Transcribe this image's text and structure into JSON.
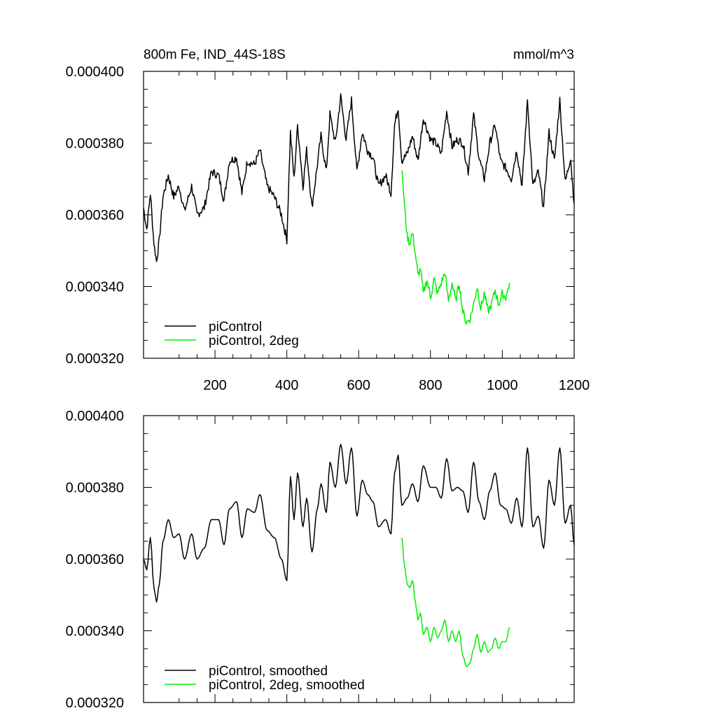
{
  "chart_data": [
    {
      "type": "line",
      "title": "800m Fe, IND_44S-18S",
      "units": "mmol/m^3",
      "xlabel": "",
      "ylabel": "",
      "xlim": [
        1,
        1200
      ],
      "ylim": [
        0.00032,
        0.0004
      ],
      "x_ticks": [
        "200",
        "400",
        "600",
        "800",
        "1000",
        "1200"
      ],
      "y_ticks": [
        "0.000320",
        "0.000340",
        "0.000360",
        "0.000380",
        "0.000400"
      ],
      "legend_position": "bottom-left",
      "series": [
        {
          "name": "piControl",
          "color": "#000000",
          "points": [
            [
              1,
              0.000362
            ],
            [
              10,
              0.000356
            ],
            [
              20,
              0.000366
            ],
            [
              30,
              0.000352
            ],
            [
              37,
              0.000347
            ],
            [
              45,
              0.000353
            ],
            [
              55,
              0.000365
            ],
            [
              70,
              0.000371
            ],
            [
              85,
              0.000365
            ],
            [
              100,
              0.000368
            ],
            [
              115,
              0.000361
            ],
            [
              135,
              0.000368
            ],
            [
              150,
              0.00036
            ],
            [
              170,
              0.000362
            ],
            [
              190,
              0.000372
            ],
            [
              210,
              0.000371
            ],
            [
              225,
              0.000364
            ],
            [
              240,
              0.000375
            ],
            [
              260,
              0.000376
            ],
            [
              275,
              0.000366
            ],
            [
              290,
              0.000375
            ],
            [
              310,
              0.000374
            ],
            [
              325,
              0.000378
            ],
            [
              345,
              0.000368
            ],
            [
              365,
              0.000365
            ],
            [
              385,
              0.00036
            ],
            [
              400,
              0.000353
            ],
            [
              410,
              0.000383
            ],
            [
              420,
              0.00037
            ],
            [
              430,
              0.000385
            ],
            [
              445,
              0.000368
            ],
            [
              455,
              0.000378
            ],
            [
              470,
              0.000362
            ],
            [
              485,
              0.000374
            ],
            [
              495,
              0.000382
            ],
            [
              510,
              0.000372
            ],
            [
              520,
              0.000388
            ],
            [
              535,
              0.00038
            ],
            [
              550,
              0.000393
            ],
            [
              565,
              0.000381
            ],
            [
              580,
              0.000392
            ],
            [
              595,
              0.000372
            ],
            [
              610,
              0.000383
            ],
            [
              625,
              0.000378
            ],
            [
              640,
              0.000376
            ],
            [
              655,
              0.000368
            ],
            [
              675,
              0.000371
            ],
            [
              690,
              0.000366
            ],
            [
              700,
              0.000385
            ],
            [
              710,
              0.00039
            ],
            [
              720,
              0.000375
            ],
            [
              735,
              0.000377
            ],
            [
              750,
              0.000382
            ],
            [
              765,
              0.000375
            ],
            [
              780,
              0.000387
            ],
            [
              800,
              0.000381
            ],
            [
              815,
              0.00038
            ],
            [
              830,
              0.000377
            ],
            [
              845,
              0.000389
            ],
            [
              860,
              0.000379
            ],
            [
              875,
              0.000381
            ],
            [
              890,
              0.00038
            ],
            [
              905,
              0.000372
            ],
            [
              920,
              0.000388
            ],
            [
              935,
              0.000376
            ],
            [
              950,
              0.00037
            ],
            [
              965,
              0.00038
            ],
            [
              980,
              0.000385
            ],
            [
              995,
              0.000375
            ],
            [
              1010,
              0.000373
            ],
            [
              1025,
              0.00037
            ],
            [
              1040,
              0.000378
            ],
            [
              1055,
              0.000368
            ],
            [
              1070,
              0.000392
            ],
            [
              1085,
              0.000368
            ],
            [
              1100,
              0.000372
            ],
            [
              1115,
              0.000362
            ],
            [
              1130,
              0.000383
            ],
            [
              1145,
              0.000375
            ],
            [
              1160,
              0.000392
            ],
            [
              1175,
              0.000369
            ],
            [
              1190,
              0.000376
            ],
            [
              1200,
              0.000363
            ]
          ]
        },
        {
          "name": "piControl, 2deg",
          "color": "#00ee00",
          "points": [
            [
              720,
              0.000373
            ],
            [
              728,
              0.000362
            ],
            [
              735,
              0.000354
            ],
            [
              742,
              0.000352
            ],
            [
              750,
              0.000355
            ],
            [
              758,
              0.000349
            ],
            [
              765,
              0.000343
            ],
            [
              772,
              0.000345
            ],
            [
              780,
              0.000338
            ],
            [
              790,
              0.000342
            ],
            [
              800,
              0.000337
            ],
            [
              810,
              0.000342
            ],
            [
              820,
              0.000338
            ],
            [
              830,
              0.000341
            ],
            [
              840,
              0.000344
            ],
            [
              850,
              0.000336
            ],
            [
              860,
              0.000341
            ],
            [
              870,
              0.000336
            ],
            [
              880,
              0.000341
            ],
            [
              890,
              0.000333
            ],
            [
              900,
              0.00033
            ],
            [
              910,
              0.000331
            ],
            [
              920,
              0.000335
            ],
            [
              930,
              0.00034
            ],
            [
              940,
              0.000334
            ],
            [
              950,
              0.000338
            ],
            [
              960,
              0.000333
            ],
            [
              970,
              0.000335
            ],
            [
              980,
              0.000339
            ],
            [
              990,
              0.000335
            ],
            [
              1000,
              0.000338
            ],
            [
              1010,
              0.000337
            ],
            [
              1020,
              0.000341
            ]
          ]
        }
      ]
    },
    {
      "type": "line",
      "title": "",
      "units": "",
      "xlabel": "",
      "ylabel": "",
      "xlim": [
        1,
        1200
      ],
      "ylim": [
        0.00032,
        0.0004
      ],
      "x_ticks": [],
      "y_ticks": [
        "0.000320",
        "0.000340",
        "0.000360",
        "0.000380",
        "0.000400"
      ],
      "legend_position": "bottom-left",
      "series": [
        {
          "name": "piControl, smoothed",
          "color": "#000000",
          "points": [
            [
              1,
              0.00036
            ],
            [
              10,
              0.000357
            ],
            [
              20,
              0.000366
            ],
            [
              30,
              0.000352
            ],
            [
              37,
              0.000348
            ],
            [
              45,
              0.000353
            ],
            [
              55,
              0.000365
            ],
            [
              70,
              0.000371
            ],
            [
              85,
              0.000366
            ],
            [
              100,
              0.000367
            ],
            [
              115,
              0.00036
            ],
            [
              135,
              0.000367
            ],
            [
              150,
              0.00036
            ],
            [
              170,
              0.000363
            ],
            [
              190,
              0.000371
            ],
            [
              210,
              0.000371
            ],
            [
              225,
              0.000364
            ],
            [
              240,
              0.000374
            ],
            [
              260,
              0.000376
            ],
            [
              275,
              0.000366
            ],
            [
              290,
              0.000374
            ],
            [
              310,
              0.000373
            ],
            [
              325,
              0.000378
            ],
            [
              345,
              0.000368
            ],
            [
              365,
              0.000366
            ],
            [
              385,
              0.00036
            ],
            [
              400,
              0.000354
            ],
            [
              410,
              0.000383
            ],
            [
              420,
              0.000371
            ],
            [
              430,
              0.000384
            ],
            [
              445,
              0.000369
            ],
            [
              455,
              0.000377
            ],
            [
              470,
              0.000362
            ],
            [
              485,
              0.000374
            ],
            [
              495,
              0.000381
            ],
            [
              510,
              0.000373
            ],
            [
              520,
              0.000387
            ],
            [
              535,
              0.00038
            ],
            [
              550,
              0.000392
            ],
            [
              565,
              0.000381
            ],
            [
              580,
              0.000391
            ],
            [
              595,
              0.000372
            ],
            [
              610,
              0.000382
            ],
            [
              625,
              0.000378
            ],
            [
              640,
              0.000376
            ],
            [
              655,
              0.000369
            ],
            [
              675,
              0.000371
            ],
            [
              690,
              0.000367
            ],
            [
              700,
              0.000384
            ],
            [
              710,
              0.000389
            ],
            [
              720,
              0.000375
            ],
            [
              735,
              0.000377
            ],
            [
              750,
              0.000381
            ],
            [
              765,
              0.000376
            ],
            [
              780,
              0.000386
            ],
            [
              800,
              0.00038
            ],
            [
              815,
              0.00038
            ],
            [
              830,
              0.000377
            ],
            [
              845,
              0.000388
            ],
            [
              860,
              0.000379
            ],
            [
              875,
              0.00038
            ],
            [
              890,
              0.000379
            ],
            [
              905,
              0.000373
            ],
            [
              920,
              0.000387
            ],
            [
              935,
              0.000376
            ],
            [
              950,
              0.000371
            ],
            [
              965,
              0.000379
            ],
            [
              980,
              0.000384
            ],
            [
              995,
              0.000375
            ],
            [
              1010,
              0.000374
            ],
            [
              1025,
              0.00037
            ],
            [
              1040,
              0.000377
            ],
            [
              1055,
              0.000369
            ],
            [
              1070,
              0.000391
            ],
            [
              1085,
              0.000369
            ],
            [
              1100,
              0.000372
            ],
            [
              1115,
              0.000363
            ],
            [
              1130,
              0.000382
            ],
            [
              1145,
              0.000375
            ],
            [
              1160,
              0.000391
            ],
            [
              1175,
              0.00037
            ],
            [
              1190,
              0.000375
            ],
            [
              1200,
              0.000364
            ]
          ]
        },
        {
          "name": "piControl, 2deg, smoothed",
          "color": "#00ee00",
          "points": [
            [
              720,
              0.000366
            ],
            [
              728,
              0.000358
            ],
            [
              735,
              0.000353
            ],
            [
              742,
              0.000352
            ],
            [
              750,
              0.000354
            ],
            [
              758,
              0.000348
            ],
            [
              765,
              0.000343
            ],
            [
              772,
              0.000345
            ],
            [
              780,
              0.000339
            ],
            [
              790,
              0.000341
            ],
            [
              800,
              0.000337
            ],
            [
              810,
              0.000341
            ],
            [
              820,
              0.000338
            ],
            [
              830,
              0.00034
            ],
            [
              840,
              0.000343
            ],
            [
              850,
              0.000337
            ],
            [
              860,
              0.00034
            ],
            [
              870,
              0.000337
            ],
            [
              880,
              0.00034
            ],
            [
              890,
              0.000333
            ],
            [
              900,
              0.00033
            ],
            [
              910,
              0.000331
            ],
            [
              920,
              0.000335
            ],
            [
              930,
              0.000339
            ],
            [
              940,
              0.000334
            ],
            [
              950,
              0.000337
            ],
            [
              960,
              0.000334
            ],
            [
              970,
              0.000335
            ],
            [
              980,
              0.000338
            ],
            [
              990,
              0.000335
            ],
            [
              1000,
              0.000337
            ],
            [
              1010,
              0.000337
            ],
            [
              1020,
              0.000341
            ]
          ]
        }
      ]
    }
  ]
}
